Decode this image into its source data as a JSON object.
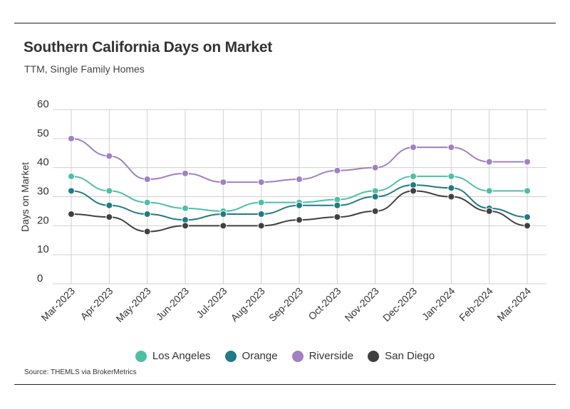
{
  "header": {
    "title": "Southern California Days on Market",
    "subtitle": "TTM, Single Family Homes"
  },
  "footer": {
    "source": "Source:  THEMLS via BrokerMetrics"
  },
  "colors": {
    "los_angeles": "#4dbfa5",
    "orange": "#217a85",
    "riverside": "#a07fc4",
    "san_diego": "#404040",
    "grid": "#d0d0d0",
    "axis_text": "#333333"
  },
  "chart_data": {
    "type": "line",
    "title": "Southern California Days on Market",
    "subtitle": "TTM, Single Family Homes",
    "xlabel": "",
    "ylabel": "Days on Market",
    "ylim": [
      0,
      60
    ],
    "yticks": [
      "0",
      "10",
      "20",
      "30",
      "40",
      "50",
      "60"
    ],
    "grid": true,
    "legend_position": "bottom",
    "categories": [
      "Mar-2023",
      "Apr-2023",
      "May-2023",
      "Jun-2023",
      "Jul-2023",
      "Aug-2023",
      "Sep-2023",
      "Oct-2023",
      "Nov-2023",
      "Dec-2023",
      "Jan-2024",
      "Feb-2024",
      "Mar-2024"
    ],
    "series": [
      {
        "name": "Los Angeles",
        "color": "#4dbfa5",
        "values": [
          37,
          32,
          28,
          26,
          25,
          28,
          28,
          29,
          32,
          37,
          37,
          32,
          32
        ]
      },
      {
        "name": "Orange",
        "color": "#217a85",
        "values": [
          32,
          27,
          24,
          22,
          24,
          24,
          27,
          27,
          30,
          34,
          33,
          26,
          23
        ]
      },
      {
        "name": "Riverside",
        "color": "#a07fc4",
        "values": [
          50,
          44,
          36,
          38,
          35,
          35,
          36,
          39,
          40,
          47,
          47,
          42,
          42
        ]
      },
      {
        "name": "San Diego",
        "color": "#404040",
        "values": [
          24,
          23,
          18,
          20,
          20,
          20,
          22,
          23,
          25,
          32,
          30,
          25,
          20
        ]
      }
    ]
  }
}
